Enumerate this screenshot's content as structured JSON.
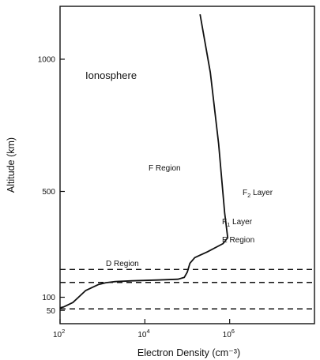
{
  "chart_data": {
    "type": "line",
    "xlabel": "Electron Density (cm⁻³)",
    "ylabel": "Altitude (km)",
    "xscale": "log",
    "xlim": [
      100,
      100000000
    ],
    "ylim": [
      0,
      1200
    ],
    "x_ticks": [
      {
        "value": 100,
        "mantissa": "10",
        "exponent": "2"
      },
      {
        "value": 10000,
        "mantissa": "10",
        "exponent": "4"
      },
      {
        "value": 1000000,
        "mantissa": "10",
        "exponent": "6"
      }
    ],
    "y_ticks": [
      {
        "value": 50,
        "label": "50"
      },
      {
        "value": 100,
        "label": "100"
      },
      {
        "value": 500,
        "label": "500"
      },
      {
        "value": 1000,
        "label": "1000"
      }
    ],
    "series": [
      {
        "x": [
          100,
          120,
          200,
          400,
          800,
          1200,
          2000,
          5000,
          20000,
          60000,
          85000,
          100000,
          115000,
          150000,
          300000,
          700000,
          900000,
          760000,
          550000,
          350000,
          200000
        ],
        "y": [
          60,
          63,
          80,
          125,
          148,
          155,
          159,
          162,
          165,
          168,
          175,
          195,
          228,
          250,
          272,
          303,
          325,
          420,
          680,
          950,
          1170
        ]
      }
    ],
    "boundaries": [
      56,
      156,
      205
    ],
    "annotations": {
      "ionosphere": "Ionosphere",
      "f_region": "F Region",
      "f2_layer": {
        "main": "F",
        "sub": "2",
        "suffix": " Layer"
      },
      "f1_layer": {
        "main": "F",
        "sub": "1",
        "suffix": " Layer"
      },
      "e_region": "E Region",
      "d_region": "D Region"
    },
    "grid": false,
    "legend": "none"
  }
}
